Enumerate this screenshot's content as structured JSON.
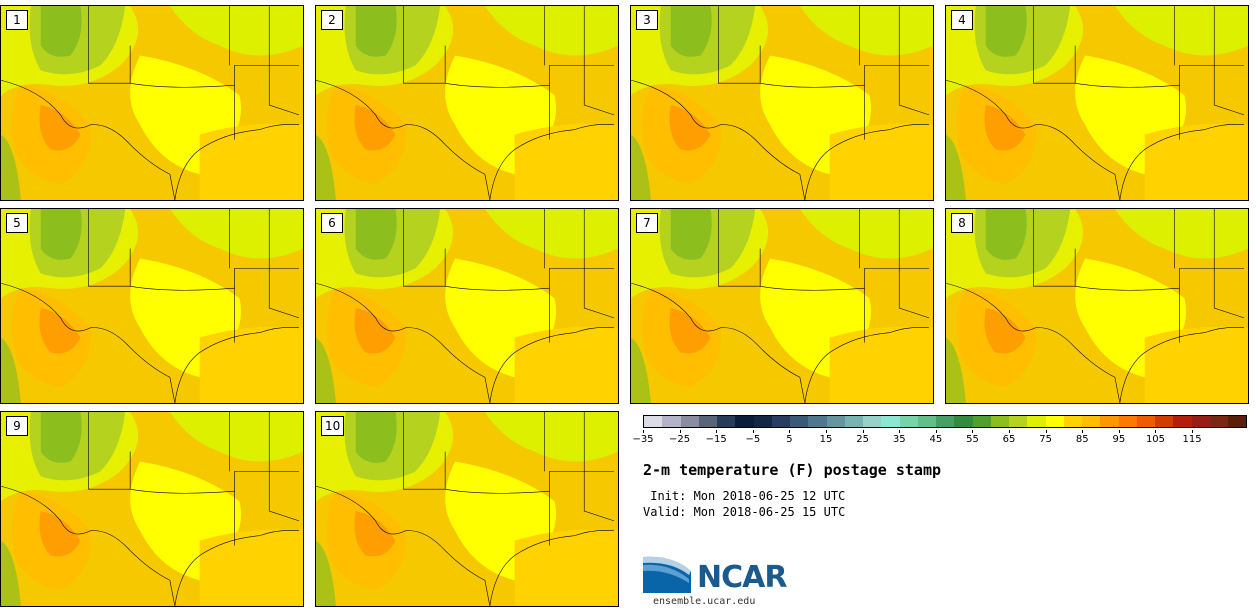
{
  "panels": [
    {
      "label": "1"
    },
    {
      "label": "2"
    },
    {
      "label": "3"
    },
    {
      "label": "4"
    },
    {
      "label": "5"
    },
    {
      "label": "6"
    },
    {
      "label": "7"
    },
    {
      "label": "8"
    },
    {
      "label": "9"
    },
    {
      "label": "10"
    }
  ],
  "colorbar": {
    "colors": [
      "#dcdce6",
      "#b4b4c8",
      "#8c8ca0",
      "#5a6478",
      "#283c5a",
      "#0a1e3c",
      "#142846",
      "#283c64",
      "#3c5a78",
      "#50788c",
      "#6496a0",
      "#78b4b4",
      "#96d2c8",
      "#8ce6d2",
      "#78d2aa",
      "#64be8c",
      "#46a064",
      "#328c3c",
      "#50a02d",
      "#8cbe1e",
      "#b4d21e",
      "#dcf000",
      "#ffff00",
      "#ffd200",
      "#ffbe00",
      "#ff9600",
      "#ff7800",
      "#f05a00",
      "#d23c00",
      "#b41e0a",
      "#961e14",
      "#782814",
      "#5a1e0a"
    ],
    "tick_labels": [
      "−35",
      "−25",
      "−15",
      "−5",
      "5",
      "15",
      "25",
      "35",
      "45",
      "55",
      "65",
      "75",
      "85",
      "95",
      "105",
      "115"
    ]
  },
  "title": "2-m temperature (F) postage stamp",
  "init": " Init: Mon 2018-06-25 12 UTC",
  "valid": "Valid: Mon 2018-06-25 15 UTC",
  "logo_text": "NCAR",
  "site": "ensemble.ucar.edu"
}
